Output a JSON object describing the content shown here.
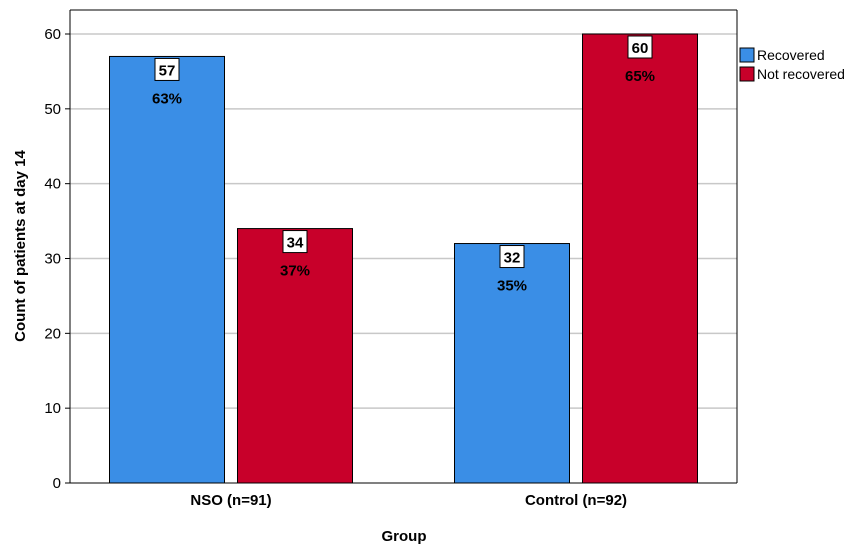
{
  "chart_data": {
    "type": "bar",
    "categories": [
      "NSO (n=91)",
      "Control (n=92)"
    ],
    "series": [
      {
        "name": "Recovered",
        "color": "#3a8ee6",
        "values": [
          57,
          32
        ],
        "percent_labels": [
          "63%",
          "35%"
        ]
      },
      {
        "name": "Not recovered",
        "color": "#c8002a",
        "values": [
          34,
          60
        ],
        "percent_labels": [
          "37%",
          "65%"
        ]
      }
    ],
    "xlabel": "Group",
    "ylabel": "Count of patients at day 14",
    "ylim": [
      0,
      60
    ],
    "yticks": [
      0,
      10,
      20,
      30,
      40,
      50,
      60
    ],
    "grid": true,
    "legend_position": "top-right"
  }
}
